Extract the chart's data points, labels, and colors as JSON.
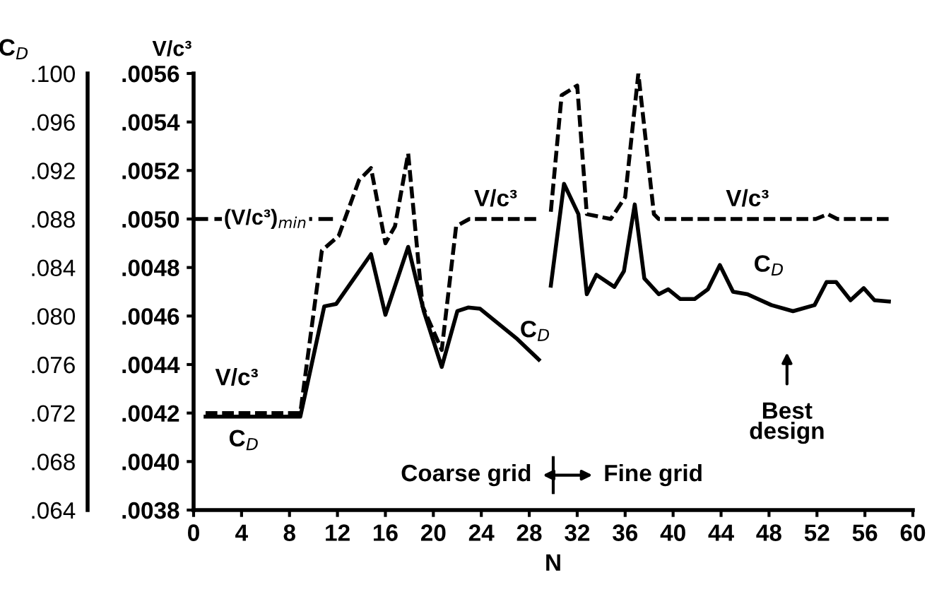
{
  "chart_data": {
    "type": "line",
    "xlabel": "N",
    "ylabel": "V/c³",
    "y2label": "C$_{D}$",
    "xlim": [
      0,
      60
    ],
    "xticks": [
      0,
      4,
      8,
      12,
      16,
      20,
      24,
      28,
      32,
      36,
      40,
      44,
      48,
      52,
      56,
      60
    ],
    "ylim": [
      0.0038,
      0.0056
    ],
    "yticks": [
      {
        "value": 0.0038,
        "label": ".0038"
      },
      {
        "value": 0.004,
        "label": ".0040"
      },
      {
        "value": 0.0042,
        "label": ".0042"
      },
      {
        "value": 0.0044,
        "label": ".0044"
      },
      {
        "value": 0.0046,
        "label": ".0046"
      },
      {
        "value": 0.0048,
        "label": ".0048"
      },
      {
        "value": 0.005,
        "label": ".0050"
      },
      {
        "value": 0.0052,
        "label": ".0052"
      },
      {
        "value": 0.0054,
        "label": ".0054"
      },
      {
        "value": 0.0056,
        "label": ".0056"
      }
    ],
    "y2lim": [
      0.064,
      0.1
    ],
    "y2ticks": [
      {
        "value": 0.064,
        "label": ".064"
      },
      {
        "value": 0.068,
        "label": ".068"
      },
      {
        "value": 0.072,
        "label": ".072"
      },
      {
        "value": 0.076,
        "label": ".076"
      },
      {
        "value": 0.08,
        "label": ".080"
      },
      {
        "value": 0.084,
        "label": ".084"
      },
      {
        "value": 0.088,
        "label": ".088"
      },
      {
        "value": 0.092,
        "label": ".092"
      },
      {
        "value": 0.096,
        "label": ".096"
      },
      {
        "value": 0.1,
        "label": ".100"
      }
    ],
    "grid": false,
    "legend": false,
    "marker": "none",
    "series": [
      {
        "color": "#000000",
        "line_style": "dashed",
        "x": [
          1,
          3,
          5,
          7,
          8.9,
          10.7,
          12.1,
          13.8,
          14.8,
          16,
          16.8,
          17.9,
          19.1,
          20.7,
          21.9,
          23,
          28.8
        ],
        "values": [
          0.0042,
          0.0042,
          0.0042,
          0.0042,
          0.0042,
          0.00487,
          0.00493,
          0.00516,
          0.00521,
          0.0049,
          0.00497,
          0.00527,
          0.00464,
          0.00446,
          0.00497,
          0.005,
          0.005
        ]
      },
      {
        "color": "#000000",
        "line_style": "dashed",
        "x": [
          29.8,
          30.7,
          32,
          32.8,
          34.8,
          36,
          37.1,
          38.4,
          38.8,
          51.9,
          52.9,
          53.7,
          58.2
        ],
        "values": [
          0.00503,
          0.00551,
          0.00555,
          0.00502,
          0.005,
          0.00509,
          0.0056,
          0.00502,
          0.005,
          0.005,
          0.00502,
          0.005,
          0.005
        ]
      },
      {
        "color": "#000000",
        "line_style": "solid",
        "axis": "y2",
        "x": [
          1,
          3,
          5,
          7,
          8.9,
          10.9,
          11.9,
          14.8,
          16,
          17.9,
          19.2,
          20.7,
          22,
          22.9,
          23.9,
          27,
          28.8
        ],
        "values": [
          0.0717,
          0.0717,
          0.0717,
          0.0717,
          0.0717,
          0.0808,
          0.081,
          0.0851,
          0.0801,
          0.0857,
          0.0804,
          0.0758,
          0.0804,
          0.0807,
          0.0806,
          0.0781,
          0.0764
        ]
      },
      {
        "color": "#000000",
        "line_style": "solid",
        "axis": "y2",
        "x": [
          29.8,
          30.9,
          32.1,
          32.8,
          33.6,
          35.1,
          35.9,
          36.8,
          37.6,
          38.8,
          39.6,
          40.6,
          41.8,
          42.9,
          43.9,
          45,
          46.2,
          48.2,
          50,
          51.8,
          52.8,
          53.6,
          54.8,
          55.9,
          56.8,
          58
        ],
        "values": [
          0.0825,
          0.0909,
          0.0884,
          0.0818,
          0.0834,
          0.0824,
          0.0837,
          0.0892,
          0.0831,
          0.0818,
          0.0822,
          0.0814,
          0.0814,
          0.0822,
          0.0842,
          0.082,
          0.0818,
          0.0809,
          0.0804,
          0.0809,
          0.0828,
          0.0828,
          0.0813,
          0.0823,
          0.0813,
          0.0812
        ]
      }
    ],
    "ref_lines": [
      {
        "axis": "y",
        "value": 0.005,
        "label": "(V/c³)$_{min}$",
        "line_style": "dashed"
      }
    ],
    "annotations": [
      "V/c³",
      "C$_{D}$",
      "V/c³",
      "C$_{D}$",
      "V/c³",
      "C$_{D}$",
      "Best\ndesign",
      "Coarse grid",
      "Fine grid"
    ]
  }
}
